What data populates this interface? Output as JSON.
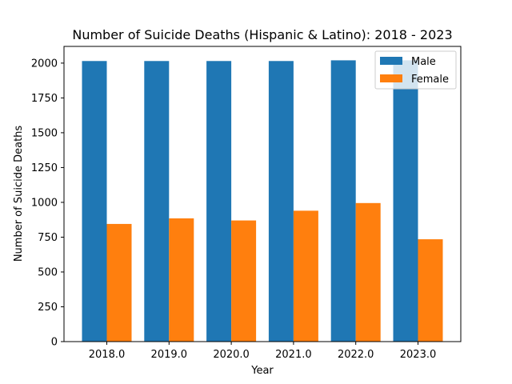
{
  "chart_data": {
    "type": "bar",
    "title": "Number of Suicide Deaths (Hispanic & Latino): 2018 - 2023",
    "xlabel": "Year",
    "ylabel": "Number of Suicide Deaths",
    "categories": [
      "2018.0",
      "2019.0",
      "2020.0",
      "2021.0",
      "2022.0",
      "2023.0"
    ],
    "series": [
      {
        "name": "Male",
        "values": [
          2015,
          2015,
          2015,
          2015,
          2020,
          2020
        ],
        "color": "#1f77b4"
      },
      {
        "name": "Female",
        "values": [
          845,
          885,
          870,
          940,
          995,
          735
        ],
        "color": "#ff7f0e"
      }
    ],
    "ylim": [
      0,
      2120
    ],
    "yticks": [
      0,
      250,
      500,
      750,
      1000,
      1250,
      1500,
      1750,
      2000
    ],
    "ytick_labels": [
      "0",
      "250",
      "500",
      "750",
      "1000",
      "1250",
      "1500",
      "1750",
      "2000"
    ],
    "grid": false,
    "legend_position": "top-right"
  }
}
